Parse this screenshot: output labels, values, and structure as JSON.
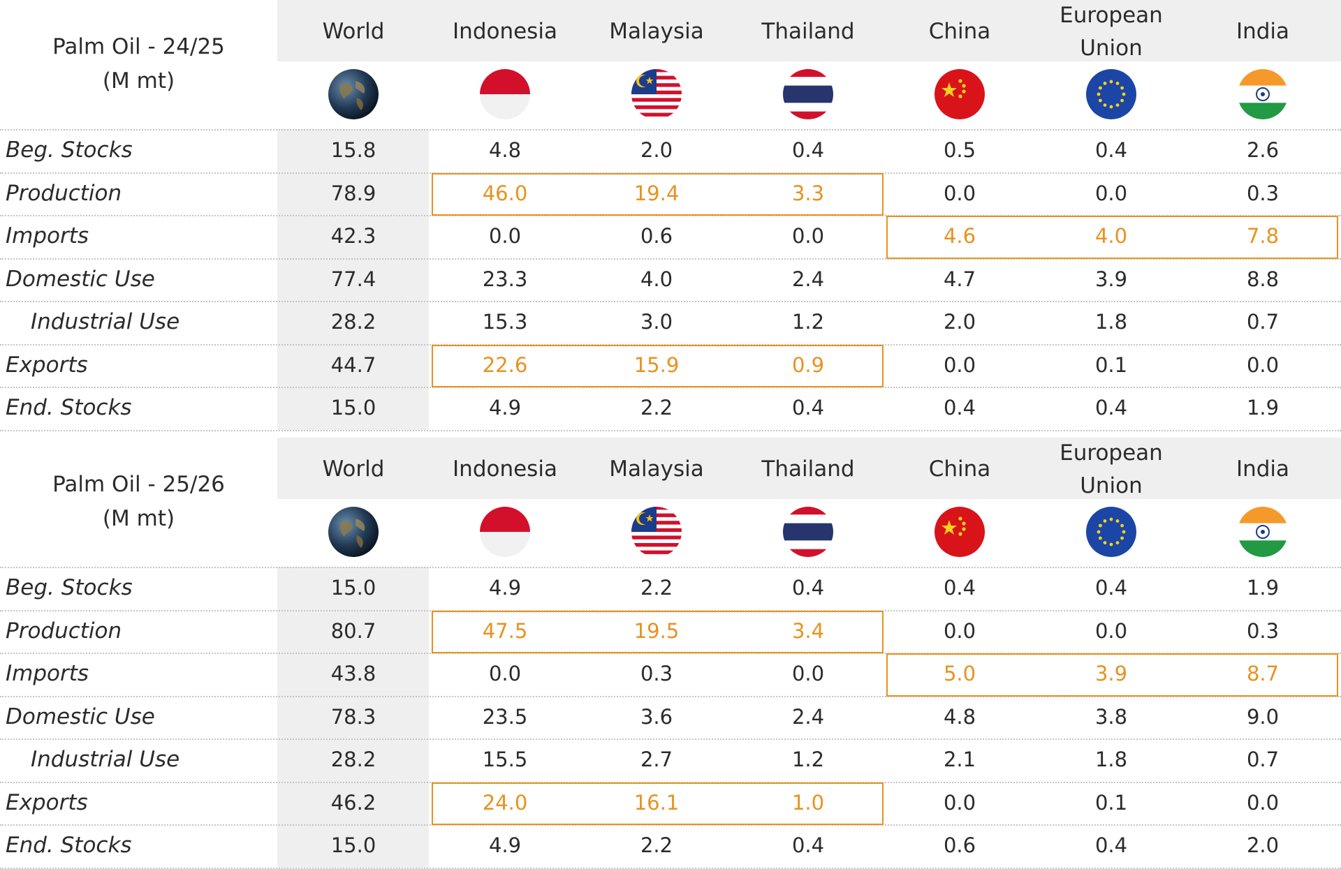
{
  "columns": [
    "World",
    "Indonesia",
    "Malaysia",
    "Thailand",
    "China",
    "European Union",
    "India"
  ],
  "flags": [
    "globe-icon",
    "indonesia-flag-icon",
    "malaysia-flag-icon",
    "thailand-flag-icon",
    "china-flag-icon",
    "eu-flag-icon",
    "india-flag-icon"
  ],
  "colors": {
    "highlight": "#e8921f",
    "band": "#efefef",
    "text": "#2b2b2b"
  },
  "tables": [
    {
      "title_line1": "Palm Oil - 24/25",
      "title_line2": "(M mt)",
      "col_labels": [
        "World",
        "Indonesia",
        "Malaysia",
        "Thailand",
        "China",
        "European",
        "India"
      ],
      "col_label_line2": "Union",
      "rows": [
        {
          "label": "Beg. Stocks",
          "values": [
            "15.8",
            "4.8",
            "2.0",
            "0.4",
            "0.5",
            "0.4",
            "2.6"
          ]
        },
        {
          "label": "Production",
          "values": [
            "78.9",
            "46.0",
            "19.4",
            "3.3",
            "0.0",
            "0.0",
            "0.3"
          ]
        },
        {
          "label": "Imports",
          "values": [
            "42.3",
            "0.0",
            "0.6",
            "0.0",
            "4.6",
            "4.0",
            "7.8"
          ]
        },
        {
          "label": "Domestic Use",
          "values": [
            "77.4",
            "23.3",
            "4.0",
            "2.4",
            "4.7",
            "3.9",
            "8.8"
          ]
        },
        {
          "label": "Industrial Use",
          "values": [
            "28.2",
            "15.3",
            "3.0",
            "1.2",
            "2.0",
            "1.8",
            "0.7"
          ]
        },
        {
          "label": "Exports",
          "values": [
            "44.7",
            "22.6",
            "15.9",
            "0.9",
            "0.0",
            "0.1",
            "0.0"
          ]
        },
        {
          "label": "End. Stocks",
          "values": [
            "15.0",
            "4.9",
            "2.2",
            "0.4",
            "0.4",
            "0.4",
            "1.9"
          ]
        }
      ]
    },
    {
      "title_line1": "Palm Oil - 25/26",
      "title_line2": "(M mt)",
      "col_labels": [
        "World",
        "Indonesia",
        "Malaysia",
        "Thailand",
        "China",
        "European",
        "India"
      ],
      "col_label_line2": "Union",
      "rows": [
        {
          "label": "Beg. Stocks",
          "values": [
            "15.0",
            "4.9",
            "2.2",
            "0.4",
            "0.4",
            "0.4",
            "1.9"
          ]
        },
        {
          "label": "Production",
          "values": [
            "80.7",
            "47.5",
            "19.5",
            "3.4",
            "0.0",
            "0.0",
            "0.3"
          ]
        },
        {
          "label": "Imports",
          "values": [
            "43.8",
            "0.0",
            "0.3",
            "0.0",
            "5.0",
            "3.9",
            "8.7"
          ]
        },
        {
          "label": "Domestic Use",
          "values": [
            "78.3",
            "23.5",
            "3.6",
            "2.4",
            "4.8",
            "3.8",
            "9.0"
          ]
        },
        {
          "label": "Industrial Use",
          "values": [
            "28.2",
            "15.5",
            "2.7",
            "1.2",
            "2.1",
            "1.8",
            "0.7"
          ]
        },
        {
          "label": "Exports",
          "values": [
            "46.2",
            "24.0",
            "16.1",
            "1.0",
            "0.0",
            "0.1",
            "0.0"
          ]
        },
        {
          "label": "End. Stocks",
          "values": [
            "15.0",
            "4.9",
            "2.2",
            "0.4",
            "0.6",
            "0.4",
            "2.0"
          ]
        }
      ]
    }
  ]
}
